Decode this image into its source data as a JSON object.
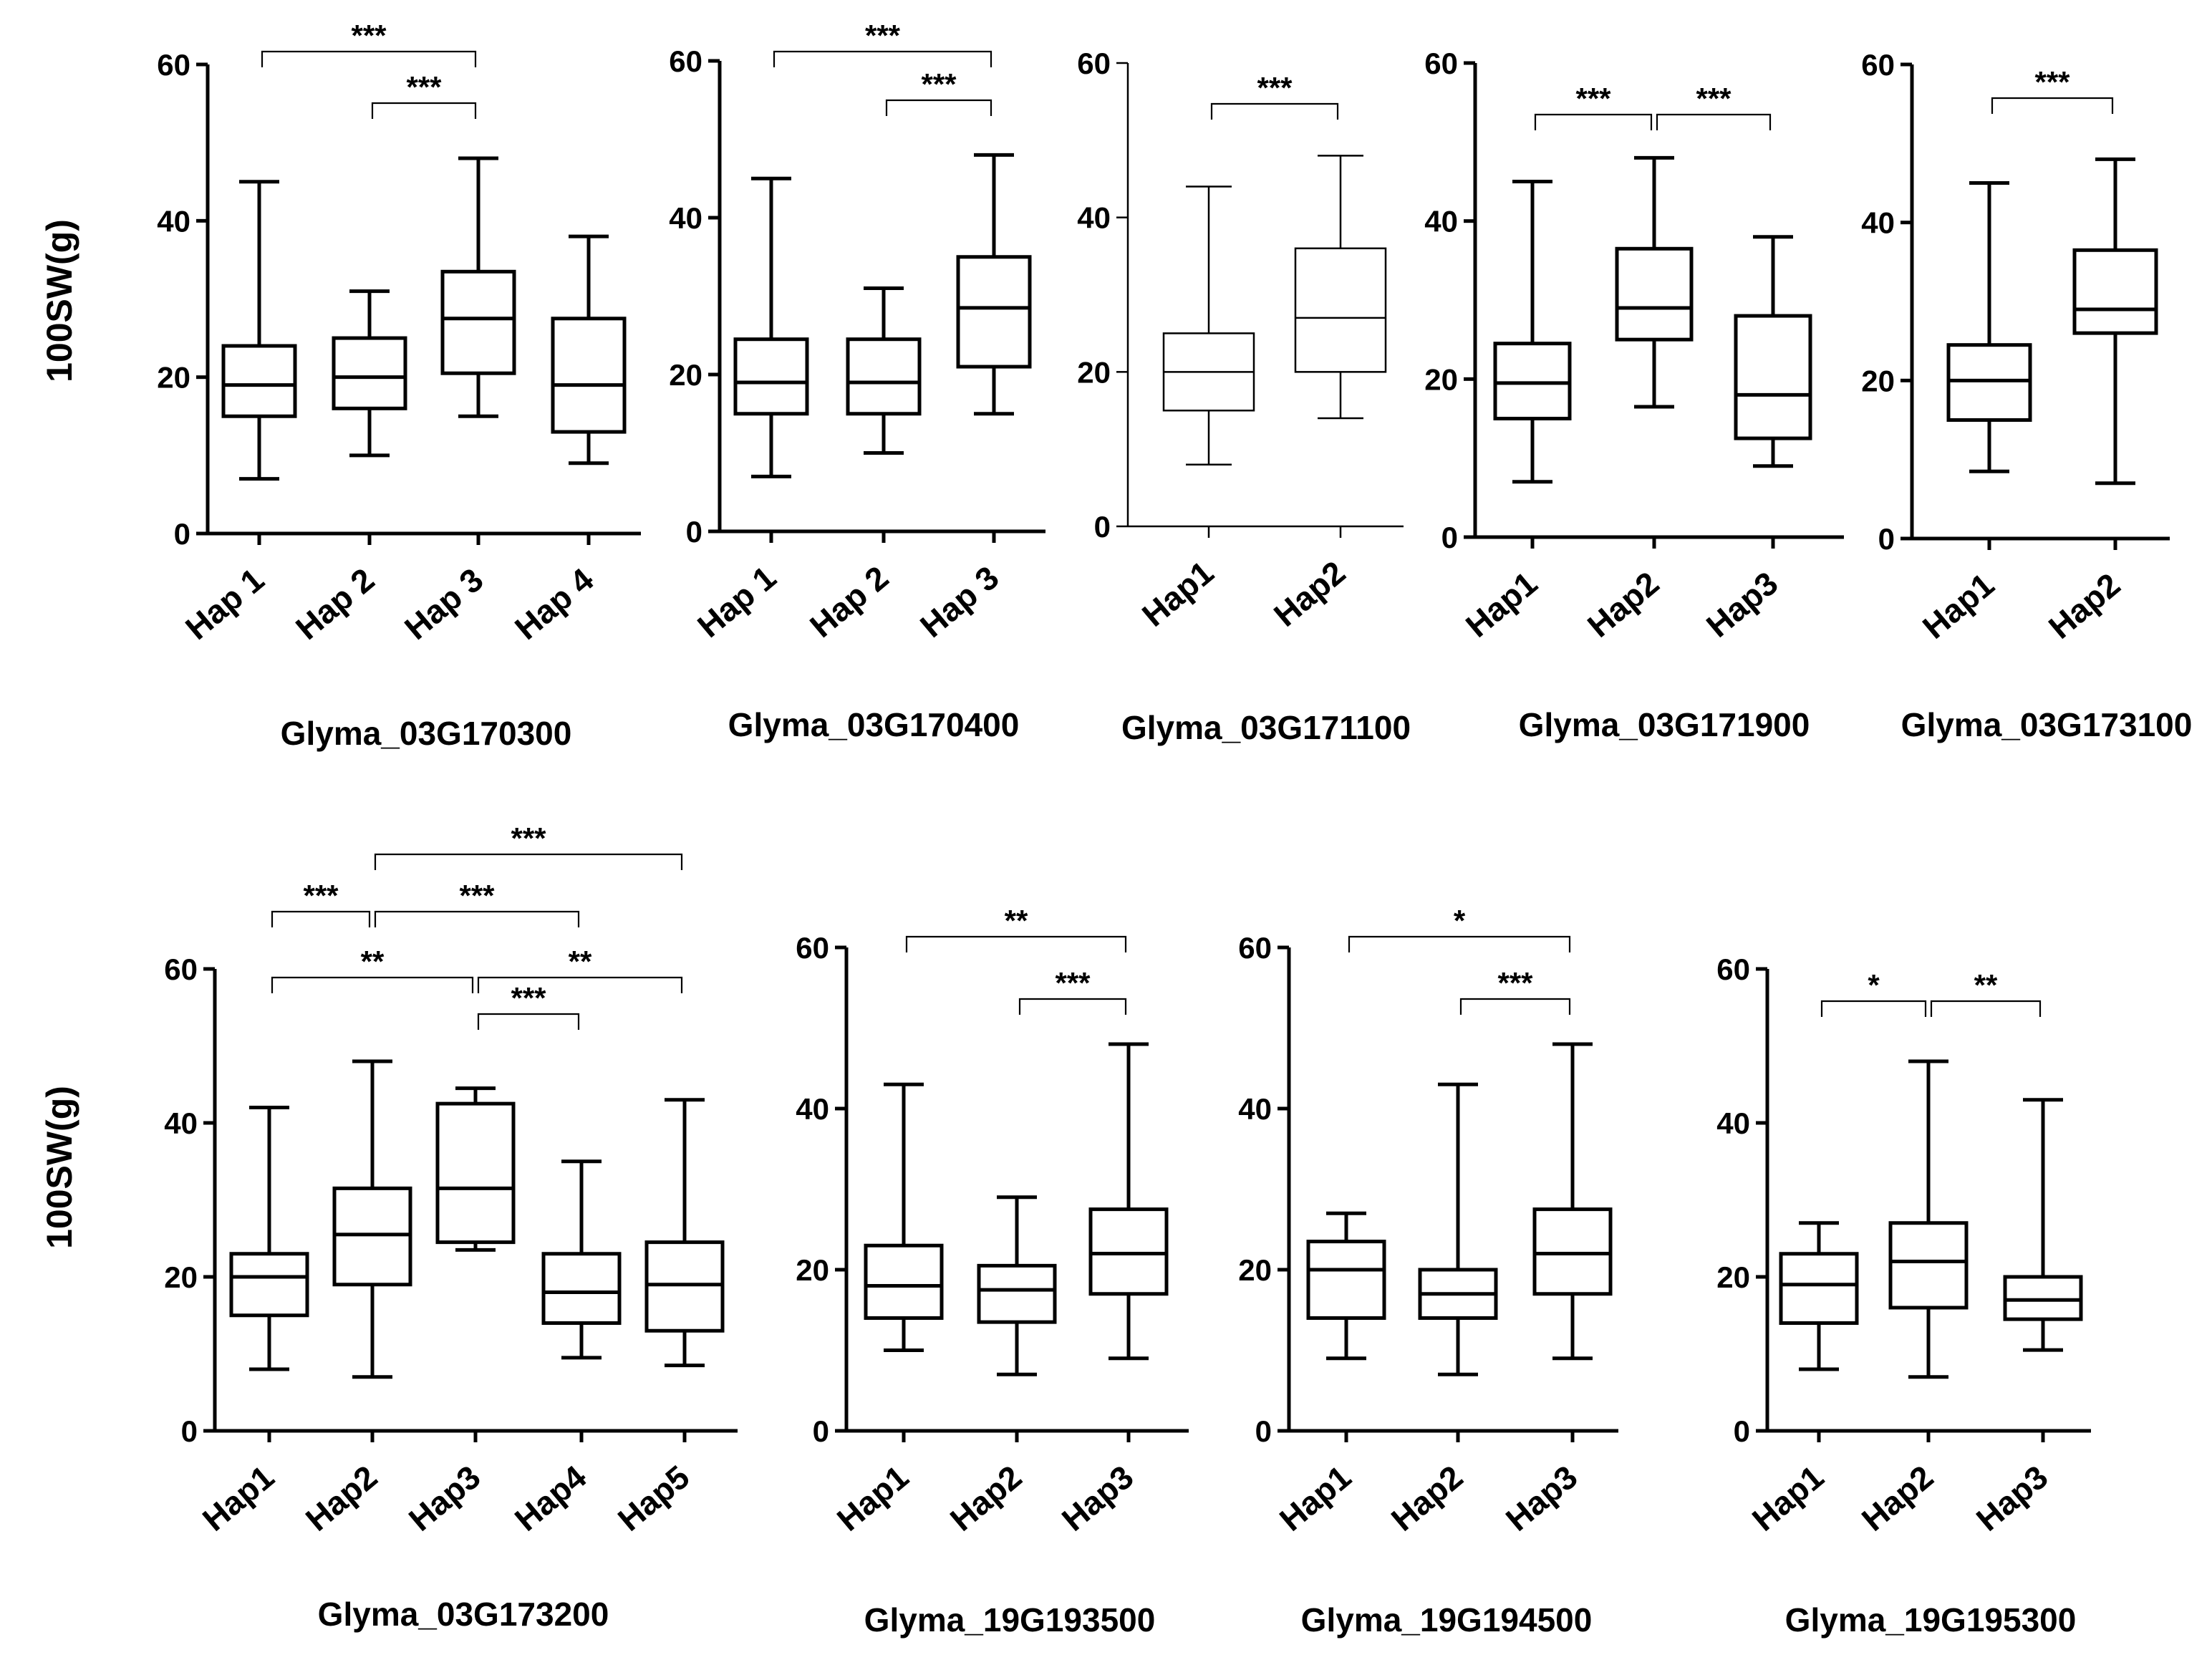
{
  "figure": {
    "ylabel": "100SW(g)"
  },
  "chart_data": [
    {
      "type": "boxplot",
      "title": "Glyma_03G170300",
      "ylabel": "100SW(g)",
      "ylim": [
        0,
        60
      ],
      "yticks": [
        0,
        20,
        40,
        60
      ],
      "categories": [
        "Hap 1",
        "Hap 2",
        "Hap 3",
        "Hap 4"
      ],
      "boxes": [
        {
          "min": 7,
          "q1": 15,
          "median": 19,
          "q3": 24,
          "max": 45
        },
        {
          "min": 10,
          "q1": 16,
          "median": 20,
          "q3": 25,
          "max": 31
        },
        {
          "min": 15,
          "q1": 20.5,
          "median": 27.5,
          "q3": 33.5,
          "max": 48
        },
        {
          "min": 9,
          "q1": 13,
          "median": 19,
          "q3": 27.5,
          "max": 38
        }
      ],
      "significance": [
        {
          "from": 0,
          "to": 2,
          "label": "***"
        },
        {
          "from": 1,
          "to": 2,
          "label": "***"
        }
      ]
    },
    {
      "type": "boxplot",
      "title": "Glyma_03G170400",
      "ylim": [
        0,
        60
      ],
      "yticks": [
        0,
        20,
        40,
        60
      ],
      "categories": [
        "Hap 1",
        "Hap 2",
        "Hap 3"
      ],
      "boxes": [
        {
          "min": 7,
          "q1": 15,
          "median": 19,
          "q3": 24.5,
          "max": 45
        },
        {
          "min": 10,
          "q1": 15,
          "median": 19,
          "q3": 24.5,
          "max": 31
        },
        {
          "min": 15,
          "q1": 21,
          "median": 28.5,
          "q3": 35,
          "max": 48
        }
      ],
      "significance": [
        {
          "from": 0,
          "to": 2,
          "label": "***"
        },
        {
          "from": 1,
          "to": 2,
          "label": "***"
        }
      ]
    },
    {
      "type": "boxplot",
      "title": "Glyma_03G171100",
      "ylim": [
        0,
        60
      ],
      "yticks": [
        0,
        20,
        40,
        60
      ],
      "categories": [
        "Hap1",
        "Hap2"
      ],
      "boxes": [
        {
          "min": 8,
          "q1": 15,
          "median": 20,
          "q3": 25,
          "max": 44
        },
        {
          "min": 14,
          "q1": 20,
          "median": 27,
          "q3": 36,
          "max": 48
        }
      ],
      "significance": [
        {
          "from": 0,
          "to": 1,
          "label": "***"
        }
      ]
    },
    {
      "type": "boxplot",
      "title": "Glyma_03G171900",
      "ylim": [
        0,
        60
      ],
      "yticks": [
        0,
        20,
        40,
        60
      ],
      "categories": [
        "Hap1",
        "Hap2",
        "Hap3"
      ],
      "boxes": [
        {
          "min": 7,
          "q1": 15,
          "median": 19.5,
          "q3": 24.5,
          "max": 45
        },
        {
          "min": 16.5,
          "q1": 25,
          "median": 29,
          "q3": 36.5,
          "max": 48
        },
        {
          "min": 9,
          "q1": 12.5,
          "median": 18,
          "q3": 28,
          "max": 38
        }
      ],
      "significance": [
        {
          "from": 0,
          "to": 1,
          "label": "***"
        },
        {
          "from": 1,
          "to": 2,
          "label": "***"
        }
      ]
    },
    {
      "type": "boxplot",
      "title": "Glyma_03G173100",
      "ylim": [
        0,
        60
      ],
      "yticks": [
        0,
        20,
        40,
        60
      ],
      "categories": [
        "Hap1",
        "Hap2"
      ],
      "boxes": [
        {
          "min": 8.5,
          "q1": 15,
          "median": 20,
          "q3": 24.5,
          "max": 45
        },
        {
          "min": 7,
          "q1": 26,
          "median": 29,
          "q3": 36.5,
          "max": 48
        }
      ],
      "significance": [
        {
          "from": 0,
          "to": 1,
          "label": "***"
        }
      ]
    },
    {
      "type": "boxplot",
      "title": "Glyma_03G173200",
      "ylabel": "100SW(g)",
      "ylim": [
        0,
        60
      ],
      "yticks": [
        0,
        20,
        40,
        60
      ],
      "categories": [
        "Hap1",
        "Hap2",
        "Hap3",
        "Hap4",
        "Hap5"
      ],
      "boxes": [
        {
          "min": 8,
          "q1": 15,
          "median": 20,
          "q3": 23,
          "max": 42
        },
        {
          "min": 7,
          "q1": 19,
          "median": 25.5,
          "q3": 31.5,
          "max": 48
        },
        {
          "min": 23.5,
          "q1": 24.5,
          "median": 31.5,
          "q3": 42.5,
          "max": 44.5
        },
        {
          "min": 9.5,
          "q1": 14,
          "median": 18,
          "q3": 23,
          "max": 35
        },
        {
          "min": 8.5,
          "q1": 13,
          "median": 19,
          "q3": 24.5,
          "max": 43
        }
      ],
      "significance": [
        {
          "from": 1,
          "to": 4,
          "label": "***"
        },
        {
          "from": 0,
          "to": 1,
          "label": "***"
        },
        {
          "from": 1,
          "to": 3,
          "label": "***"
        },
        {
          "from": 0,
          "to": 2,
          "label": "**"
        },
        {
          "from": 2,
          "to": 4,
          "label": "**"
        },
        {
          "from": 2,
          "to": 3,
          "label": "***"
        }
      ]
    },
    {
      "type": "boxplot",
      "title": "Glyma_19G193500",
      "ylim": [
        0,
        60
      ],
      "yticks": [
        0,
        20,
        40,
        60
      ],
      "categories": [
        "Hap1",
        "Hap2",
        "Hap3"
      ],
      "boxes": [
        {
          "min": 10,
          "q1": 14,
          "median": 18,
          "q3": 23,
          "max": 43
        },
        {
          "min": 7,
          "q1": 13.5,
          "median": 17.5,
          "q3": 20.5,
          "max": 29
        },
        {
          "min": 9,
          "q1": 17,
          "median": 22,
          "q3": 27.5,
          "max": 48
        }
      ],
      "significance": [
        {
          "from": 0,
          "to": 2,
          "label": "**"
        },
        {
          "from": 1,
          "to": 2,
          "label": "***"
        }
      ]
    },
    {
      "type": "boxplot",
      "title": "Glyma_19G194500",
      "ylim": [
        0,
        60
      ],
      "yticks": [
        0,
        20,
        40,
        60
      ],
      "categories": [
        "Hap1",
        "Hap2",
        "Hap3"
      ],
      "boxes": [
        {
          "min": 9,
          "q1": 14,
          "median": 20,
          "q3": 23.5,
          "max": 27
        },
        {
          "min": 7,
          "q1": 14,
          "median": 17,
          "q3": 20,
          "max": 43
        },
        {
          "min": 9,
          "q1": 17,
          "median": 22,
          "q3": 27.5,
          "max": 48
        }
      ],
      "significance": [
        {
          "from": 0,
          "to": 2,
          "label": "*"
        },
        {
          "from": 1,
          "to": 2,
          "label": "***"
        }
      ]
    },
    {
      "type": "boxplot",
      "title": "Glyma_19G195300",
      "ylim": [
        0,
        60
      ],
      "yticks": [
        0,
        20,
        40,
        60
      ],
      "categories": [
        "Hap1",
        "Hap2",
        "Hap3"
      ],
      "boxes": [
        {
          "min": 8,
          "q1": 14,
          "median": 19,
          "q3": 23,
          "max": 27
        },
        {
          "min": 7,
          "q1": 16,
          "median": 22,
          "q3": 27,
          "max": 48
        },
        {
          "min": 10.5,
          "q1": 14.5,
          "median": 17,
          "q3": 20,
          "max": 43
        }
      ],
      "significance": [
        {
          "from": 0,
          "to": 1,
          "label": "*"
        },
        {
          "from": 1,
          "to": 2,
          "label": "**"
        }
      ]
    }
  ]
}
